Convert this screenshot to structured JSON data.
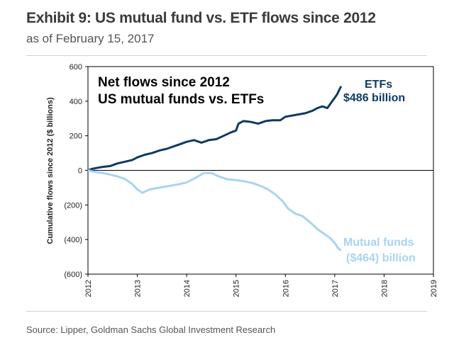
{
  "header": {
    "title": "Exhibit 9: US mutual fund vs. ETF flows since 2012",
    "subtitle": "as of February 15, 2017"
  },
  "footer": {
    "source": "Source: Lipper, Goldman Sachs Global Investment Research"
  },
  "colors": {
    "etf": "#0f3a63",
    "mutual_funds": "#a9d4f0",
    "axis": "#000000"
  },
  "chart_data": {
    "type": "line",
    "title_lines": [
      "Net flows since 2012",
      "US mutual funds vs. ETFs"
    ],
    "ylabel": "Cumulative flows since 2012 ($ billions)",
    "xlabel": "",
    "xlim": [
      2012,
      2019
    ],
    "ylim": [
      -600,
      600
    ],
    "grid": false,
    "x_ticks": [
      "2012",
      "2013",
      "2014",
      "2015",
      "2016",
      "2017",
      "2018",
      "2019"
    ],
    "y_ticks": [
      "600",
      "400",
      "200",
      "0",
      "(200)",
      "(400)",
      "(600)"
    ],
    "x_tick_values": [
      2012,
      2013,
      2014,
      2015,
      2016,
      2017,
      2018,
      2019
    ],
    "y_tick_values": [
      600,
      400,
      200,
      0,
      -200,
      -400,
      -600
    ],
    "series": [
      {
        "name": "ETFs",
        "label_lines": [
          "ETFs",
          "$486 billion"
        ],
        "color": "#0f3a63",
        "x": [
          2012.0,
          2012.1,
          2012.2,
          2012.3,
          2012.45,
          2012.6,
          2012.75,
          2012.9,
          2013.0,
          2013.15,
          2013.3,
          2013.45,
          2013.6,
          2013.75,
          2013.9,
          2014.0,
          2014.15,
          2014.3,
          2014.45,
          2014.6,
          2014.75,
          2014.9,
          2015.0,
          2015.05,
          2015.15,
          2015.3,
          2015.45,
          2015.6,
          2015.75,
          2015.9,
          2016.0,
          2016.2,
          2016.4,
          2016.55,
          2016.65,
          2016.75,
          2016.85,
          2016.9,
          2016.95,
          2017.0,
          2017.05,
          2017.1,
          2017.13
        ],
        "values": [
          0,
          10,
          15,
          20,
          25,
          40,
          50,
          60,
          75,
          90,
          100,
          115,
          125,
          140,
          155,
          165,
          175,
          160,
          175,
          180,
          200,
          220,
          230,
          270,
          285,
          280,
          270,
          285,
          290,
          290,
          310,
          320,
          330,
          345,
          360,
          370,
          360,
          380,
          400,
          420,
          440,
          470,
          486
        ]
      },
      {
        "name": "Mutual funds",
        "label_lines": [
          "Mutual funds",
          "($464) billion"
        ],
        "color": "#a9d4f0",
        "x": [
          2012.0,
          2012.15,
          2012.3,
          2012.45,
          2012.6,
          2012.75,
          2012.9,
          2013.0,
          2013.1,
          2013.25,
          2013.45,
          2013.65,
          2013.85,
          2014.0,
          2014.2,
          2014.35,
          2014.5,
          2014.65,
          2014.8,
          2014.95,
          2015.1,
          2015.2,
          2015.35,
          2015.5,
          2015.65,
          2015.8,
          2015.95,
          2016.05,
          2016.2,
          2016.35,
          2016.5,
          2016.65,
          2016.8,
          2016.9,
          2017.0,
          2017.07,
          2017.13
        ],
        "values": [
          0,
          -10,
          -15,
          -25,
          -35,
          -50,
          -80,
          -110,
          -130,
          -110,
          -100,
          -90,
          -80,
          -70,
          -40,
          -15,
          -15,
          -35,
          -50,
          -55,
          -60,
          -65,
          -75,
          -90,
          -110,
          -140,
          -180,
          -220,
          -250,
          -265,
          -300,
          -340,
          -370,
          -390,
          -420,
          -450,
          -464
        ]
      }
    ]
  }
}
